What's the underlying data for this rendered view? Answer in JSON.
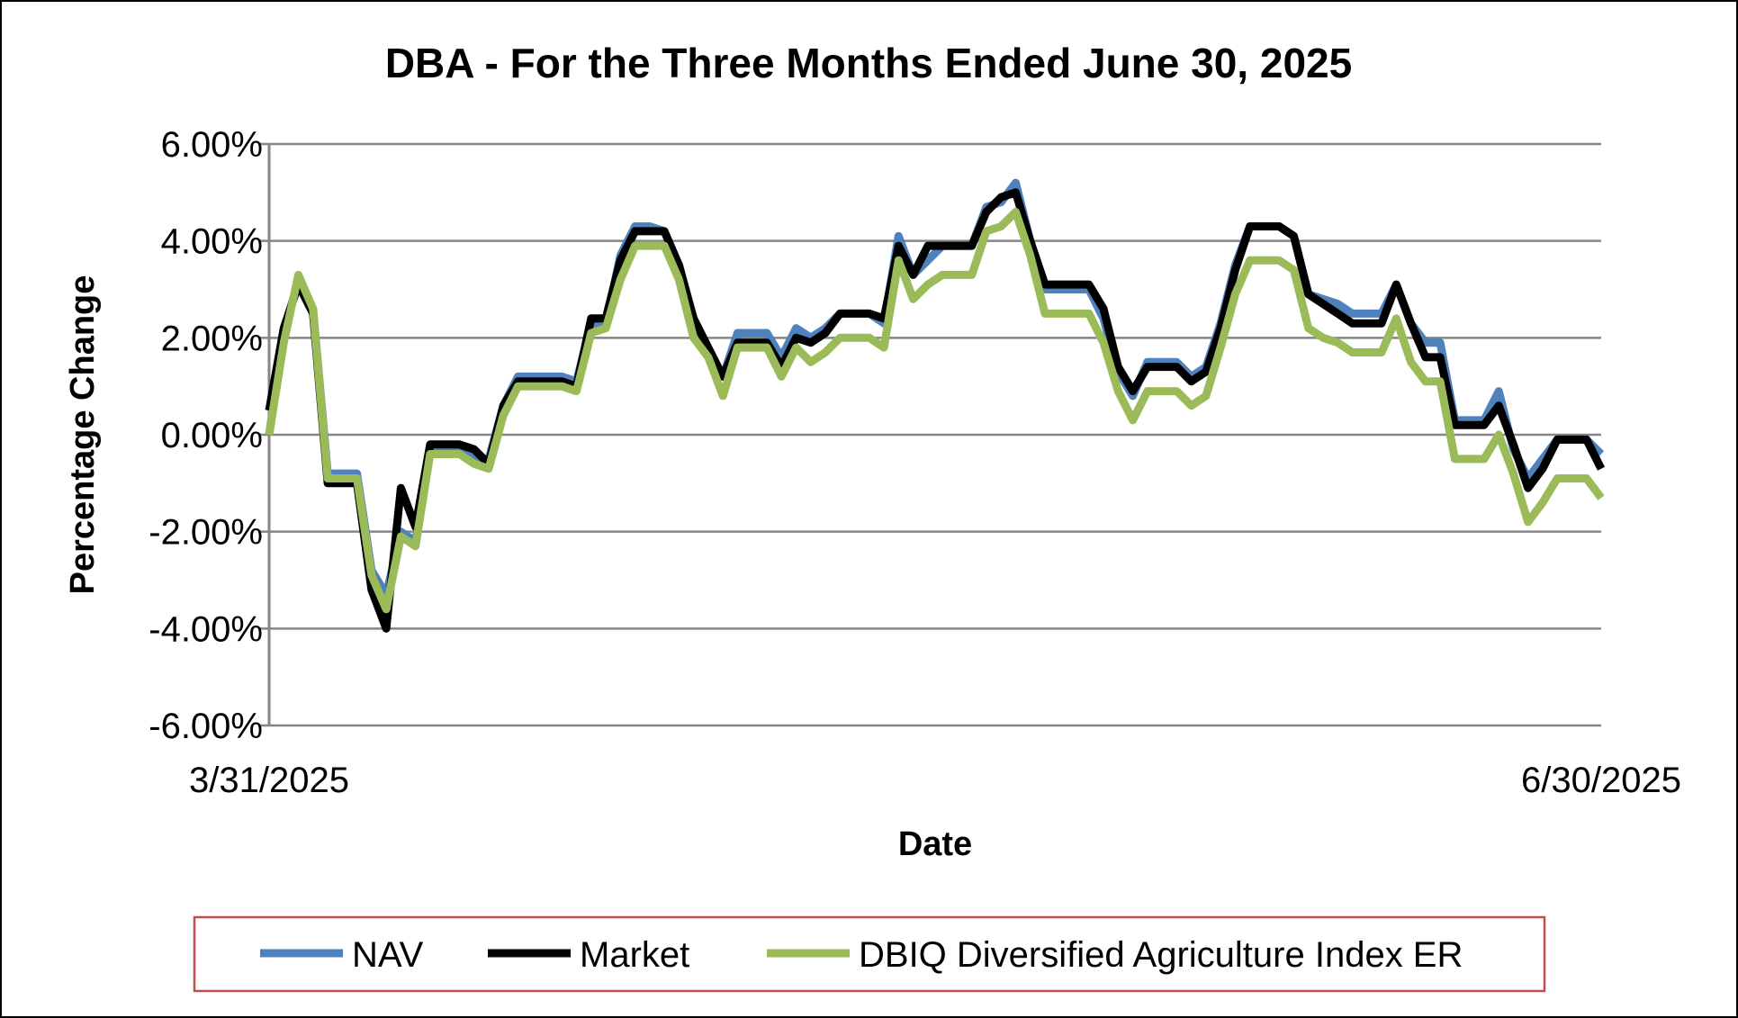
{
  "chart_data": {
    "type": "line",
    "title": "DBA - For the Three Months Ended June 30, 2025",
    "xlabel": "Date",
    "ylabel": "Percentage Change",
    "x_range": [
      "3/31/2025",
      "6/30/2025"
    ],
    "x_tick_labels": [
      "3/31/2025",
      "6/30/2025"
    ],
    "ylim": [
      -6.0,
      6.0
    ],
    "y_ticks": [
      6.0,
      4.0,
      2.0,
      0.0,
      -2.0,
      -4.0,
      -6.0
    ],
    "y_tick_labels": [
      "6.00%",
      "4.00%",
      "2.00%",
      "0.00%",
      "-2.00%",
      "-4.00%",
      "-6.00%"
    ],
    "grid": "horizontal",
    "legend_position": "bottom",
    "series": [
      {
        "name": "NAV",
        "color": "#4f81bd",
        "values": [
          0.0,
          2.1,
          3.2,
          2.6,
          -0.8,
          -0.8,
          -0.8,
          -2.8,
          -3.3,
          -2.0,
          -2.2,
          -0.3,
          -0.3,
          -0.3,
          -0.5,
          -0.5,
          0.6,
          1.2,
          1.2,
          1.2,
          1.2,
          1.1,
          2.3,
          2.3,
          3.7,
          4.3,
          4.3,
          4.2,
          3.5,
          2.3,
          1.7,
          1.2,
          2.1,
          2.1,
          2.1,
          1.6,
          2.2,
          2.0,
          2.2,
          2.5,
          2.5,
          2.5,
          2.3,
          4.1,
          3.3,
          3.6,
          3.9,
          3.9,
          3.9,
          4.7,
          4.8,
          5.2,
          4.0,
          3.0,
          3.0,
          3.0,
          3.0,
          2.4,
          1.3,
          0.8,
          1.5,
          1.5,
          1.5,
          1.2,
          1.4,
          2.3,
          3.5,
          4.3,
          4.3,
          4.3,
          4.1,
          2.9,
          2.8,
          2.7,
          2.5,
          2.5,
          2.5,
          3.1,
          2.3,
          1.9,
          1.9,
          0.3,
          0.3,
          0.3,
          0.9,
          -0.3,
          -0.9,
          -0.5,
          -0.1,
          -0.1,
          -0.1,
          -0.4
        ]
      },
      {
        "name": "Market",
        "color": "#000000",
        "values": [
          0.5,
          2.2,
          3.1,
          2.5,
          -1.0,
          -1.0,
          -1.0,
          -3.2,
          -4.0,
          -1.1,
          -1.9,
          -0.2,
          -0.2,
          -0.2,
          -0.3,
          -0.6,
          0.6,
          1.1,
          1.1,
          1.1,
          1.1,
          1.0,
          2.4,
          2.4,
          3.6,
          4.2,
          4.2,
          4.2,
          3.5,
          2.4,
          1.8,
          1.2,
          1.9,
          1.9,
          1.9,
          1.4,
          2.0,
          1.9,
          2.1,
          2.5,
          2.5,
          2.5,
          2.4,
          3.9,
          3.3,
          3.9,
          3.9,
          3.9,
          3.9,
          4.6,
          4.9,
          5.0,
          4.0,
          3.1,
          3.1,
          3.1,
          3.1,
          2.6,
          1.4,
          0.9,
          1.4,
          1.4,
          1.4,
          1.1,
          1.3,
          2.2,
          3.4,
          4.3,
          4.3,
          4.3,
          4.1,
          2.9,
          2.7,
          2.5,
          2.3,
          2.3,
          2.3,
          3.1,
          2.3,
          1.6,
          1.6,
          0.2,
          0.2,
          0.2,
          0.6,
          -0.2,
          -1.1,
          -0.7,
          -0.1,
          -0.1,
          -0.1,
          -0.7
        ]
      },
      {
        "name": "DBIQ Diversified Agriculture Index ER",
        "color": "#9bbb59",
        "values": [
          0.0,
          1.9,
          3.3,
          2.6,
          -0.9,
          -0.9,
          -0.9,
          -2.9,
          -3.6,
          -2.1,
          -2.3,
          -0.4,
          -0.4,
          -0.4,
          -0.6,
          -0.7,
          0.4,
          1.0,
          1.0,
          1.0,
          1.0,
          0.9,
          2.1,
          2.2,
          3.2,
          3.9,
          3.9,
          3.9,
          3.2,
          2.0,
          1.6,
          0.8,
          1.8,
          1.8,
          1.8,
          1.2,
          1.8,
          1.5,
          1.7,
          2.0,
          2.0,
          2.0,
          1.8,
          3.6,
          2.8,
          3.1,
          3.3,
          3.3,
          3.3,
          4.2,
          4.3,
          4.6,
          3.7,
          2.5,
          2.5,
          2.5,
          2.5,
          1.9,
          0.9,
          0.3,
          0.9,
          0.9,
          0.9,
          0.6,
          0.8,
          1.8,
          2.9,
          3.6,
          3.6,
          3.6,
          3.4,
          2.2,
          2.0,
          1.9,
          1.7,
          1.7,
          1.7,
          2.4,
          1.5,
          1.1,
          1.1,
          -0.5,
          -0.5,
          -0.5,
          0.0,
          -0.8,
          -1.8,
          -1.4,
          -0.9,
          -0.9,
          -0.9,
          -1.3
        ]
      }
    ]
  }
}
